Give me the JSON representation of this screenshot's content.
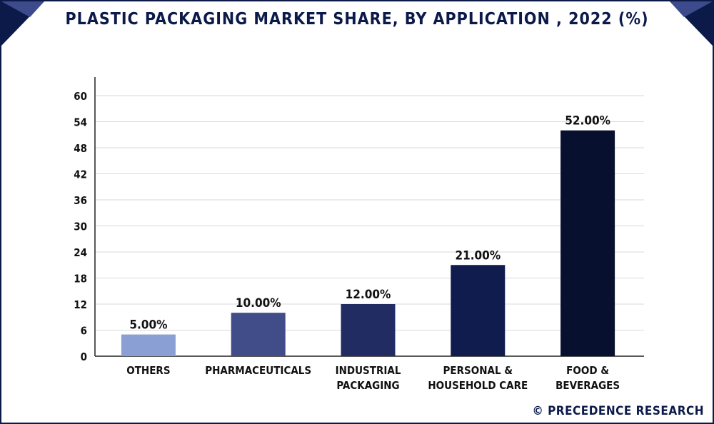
{
  "title": "PLASTIC PACKAGING MARKET SHARE, BY APPLICATION , 2022 (%)",
  "watermark": "© PRECEDENCE RESEARCH",
  "colors": {
    "navy": "#0c1a4a",
    "banner_accent": "#3d4a8c",
    "grid": "#d9d9d9"
  },
  "chart_data": {
    "type": "bar",
    "title": "PLASTIC PACKAGING MARKET SHARE, BY APPLICATION , 2022 (%)",
    "categories": [
      [
        "OTHERS"
      ],
      [
        "PHARMACEUTICALS"
      ],
      [
        "INDUSTRIAL",
        "PACKAGING"
      ],
      [
        "PERSONAL &",
        "HOUSEHOLD CARE"
      ],
      [
        "FOOD &",
        "BEVERAGES"
      ]
    ],
    "values": [
      5,
      10,
      12,
      21,
      52
    ],
    "data_labels": [
      "5.00%",
      "10.00%",
      "12.00%",
      "21.00%",
      "52.00%"
    ],
    "bar_colors": [
      "#8a9fd4",
      "#404d88",
      "#212c62",
      "#111c4e",
      "#07102e"
    ],
    "ylim": [
      0,
      60
    ],
    "yticks": [
      0,
      6,
      12,
      18,
      24,
      30,
      36,
      42,
      48,
      54,
      60
    ],
    "xlabel": "",
    "ylabel": "",
    "grid": true,
    "legend": "none"
  }
}
